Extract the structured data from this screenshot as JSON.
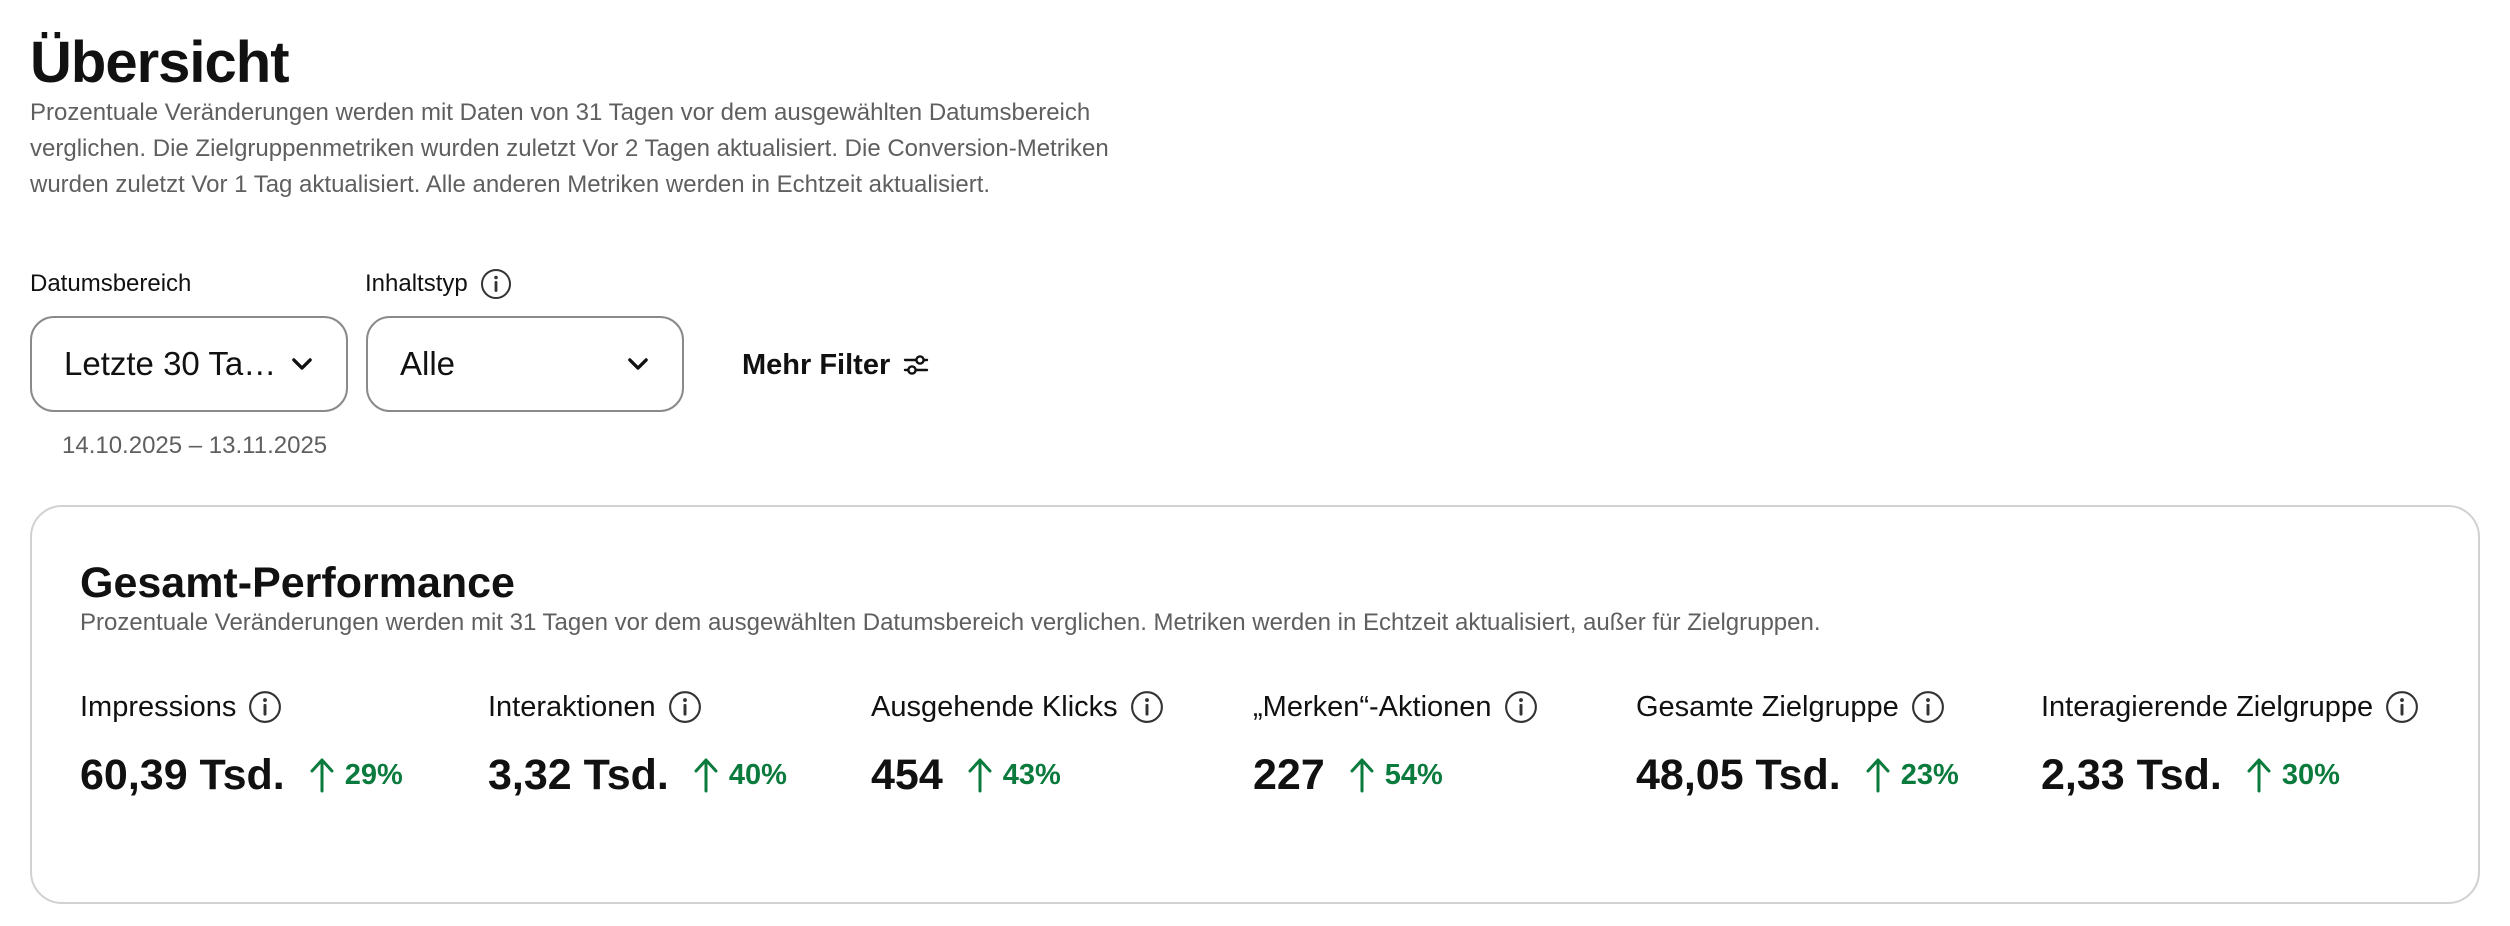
{
  "header": {
    "title": "Übersicht",
    "description": "Prozentuale Veränderungen werden mit Daten von 31 Tagen vor dem ausgewählten Datumsbereich verglichen. Die Zielgruppenmetriken wurden zuletzt Vor 2 Tagen aktualisiert. Die Conversion-Metriken wurden zuletzt Vor 1 Tag aktualisiert. Alle anderen Metriken werden in Echtzeit aktualisiert."
  },
  "filters": {
    "date_range": {
      "label": "Datumsbereich",
      "value": "Letzte 30 Ta…",
      "range_text": "14.10.2025 – 13.11.2025"
    },
    "content_type": {
      "label": "Inhaltstyp",
      "value": "Alle"
    },
    "more_filters_label": "Mehr Filter"
  },
  "performance": {
    "title": "Gesamt-Performance",
    "subtitle": "Prozentuale Veränderungen werden mit 31 Tagen vor dem ausgewählten Datumsbereich verglichen. Metriken werden in Echtzeit aktualisiert, außer für Zielgruppen.",
    "metrics": [
      {
        "label": "Impressions",
        "value": "60,39 Tsd.",
        "change": "29%"
      },
      {
        "label": "Interaktionen",
        "value": "3,32 Tsd.",
        "change": "40%"
      },
      {
        "label": "Ausgehende Klicks",
        "value": "454",
        "change": "43%"
      },
      {
        "label": "„Merken“-Aktionen",
        "value": "227",
        "change": "54%"
      },
      {
        "label": "Gesamte Zielgruppe",
        "value": "48,05 Tsd.",
        "change": "23%"
      },
      {
        "label": "Interagierende Zielgruppe",
        "value": "2,33 Tsd.",
        "change": "30%"
      }
    ]
  },
  "colors": {
    "positive_change": "#0a7a3d",
    "muted_text": "#5f5f5f",
    "border": "#d1d1d1"
  },
  "icons": {
    "info": "info-icon",
    "chevron": "chevron-down-icon",
    "filter": "sliders-icon",
    "trend": "arrow-up-icon"
  }
}
